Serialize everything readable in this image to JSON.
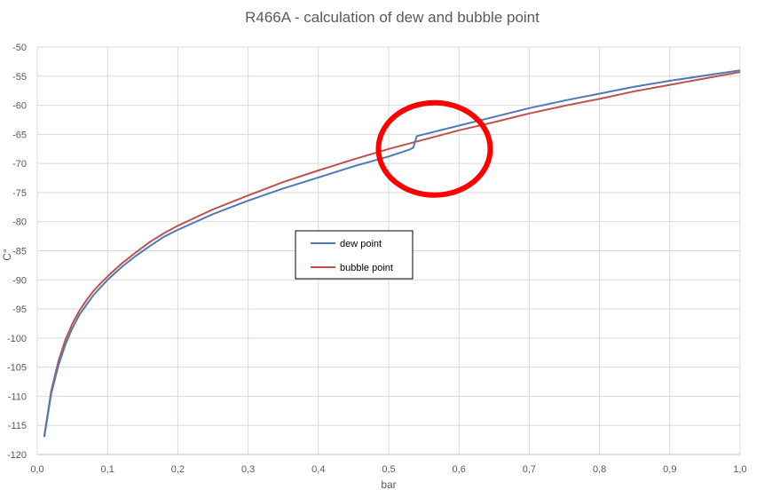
{
  "chart_data": {
    "type": "line",
    "title": "R466A - calculation of dew and bubble point",
    "xlabel": "bar",
    "ylabel": "C°",
    "xlim": [
      0.0,
      1.0
    ],
    "ylim": [
      -120,
      -50
    ],
    "grid": true,
    "legend_position": "center-left",
    "x_ticks": [
      "0,0",
      "0,1",
      "0,2",
      "0,3",
      "0,4",
      "0,5",
      "0,6",
      "0,7",
      "0,8",
      "0,9",
      "1,0"
    ],
    "y_ticks": [
      "-50",
      "-55",
      "-60",
      "-65",
      "-70",
      "-75",
      "-80",
      "-85",
      "-90",
      "-95",
      "-100",
      "-105",
      "-110",
      "-115",
      "-120"
    ],
    "series": [
      {
        "name": "dew point",
        "color": "#4f7bb5",
        "x": [
          0.01,
          0.02,
          0.03,
          0.04,
          0.05,
          0.06,
          0.07,
          0.08,
          0.09,
          0.1,
          0.12,
          0.14,
          0.16,
          0.18,
          0.2,
          0.25,
          0.3,
          0.35,
          0.4,
          0.45,
          0.5,
          0.53,
          0.535,
          0.54,
          0.6,
          0.65,
          0.7,
          0.75,
          0.8,
          0.85,
          0.9,
          0.95,
          1.0
        ],
        "y": [
          -117.0,
          -109.5,
          -104.7,
          -101.1,
          -98.3,
          -96.0,
          -94.3,
          -92.6,
          -91.3,
          -90.0,
          -87.8,
          -85.9,
          -84.2,
          -82.6,
          -81.4,
          -78.7,
          -76.4,
          -74.3,
          -72.4,
          -70.5,
          -68.8,
          -67.6,
          -67.3,
          -65.3,
          -63.5,
          -62.0,
          -60.5,
          -59.2,
          -58.0,
          -56.8,
          -55.8,
          -54.9,
          -54.0
        ]
      },
      {
        "name": "bubble point",
        "color": "#c0504d",
        "x": [
          0.01,
          0.02,
          0.03,
          0.04,
          0.05,
          0.06,
          0.07,
          0.08,
          0.09,
          0.1,
          0.12,
          0.14,
          0.16,
          0.18,
          0.2,
          0.25,
          0.3,
          0.35,
          0.4,
          0.45,
          0.5,
          0.55,
          0.6,
          0.65,
          0.7,
          0.75,
          0.8,
          0.85,
          0.9,
          0.95,
          1.0
        ],
        "y": [
          -116.8,
          -109.0,
          -104.0,
          -100.3,
          -97.5,
          -95.3,
          -93.5,
          -91.9,
          -90.6,
          -89.4,
          -87.2,
          -85.3,
          -83.5,
          -82.0,
          -80.7,
          -77.9,
          -75.5,
          -73.2,
          -71.2,
          -69.3,
          -67.5,
          -65.9,
          -64.3,
          -62.9,
          -61.4,
          -60.1,
          -58.9,
          -57.6,
          -56.5,
          -55.4,
          -54.3
        ]
      }
    ],
    "annotation": {
      "shape": "circle-highlight",
      "color": "#ff0000",
      "center": {
        "x": 0.565,
        "y": -67.5
      }
    }
  }
}
